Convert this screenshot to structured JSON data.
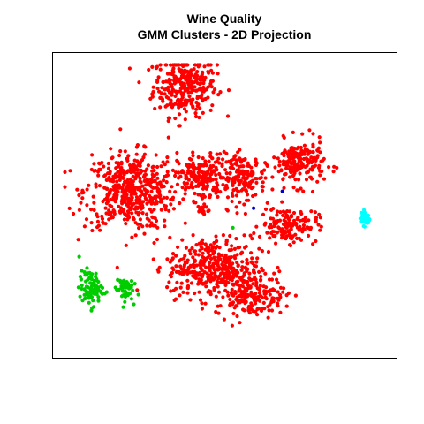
{
  "chart_data": {
    "type": "scatter",
    "title": "Wine Quality",
    "subtitle": "GMM Clusters - 2D Projection",
    "xlabel": "",
    "ylabel": "",
    "xlim": [
      0,
      100
    ],
    "ylim": [
      0,
      100
    ],
    "axes_ticks_visible": false,
    "grid": false,
    "legend": "none",
    "marker": "filled circle",
    "series": [
      {
        "color": "#ff0000",
        "clusters": [
          {
            "cx": 37.5,
            "cy": 92.5,
            "sx": 5.5,
            "sy": 6.0,
            "n": 300
          },
          {
            "cx": 20.5,
            "cy": 55.0,
            "sx": 8.0,
            "sy": 7.5,
            "n": 500
          },
          {
            "cx": 42.5,
            "cy": 60.0,
            "sx": 4.0,
            "sy": 4.5,
            "n": 180
          },
          {
            "cx": 55.5,
            "cy": 60.0,
            "sx": 4.0,
            "sy": 4.5,
            "n": 160
          },
          {
            "cx": 73.0,
            "cy": 65.0,
            "sx": 4.5,
            "sy": 4.5,
            "n": 200
          },
          {
            "cx": 70.0,
            "cy": 43.0,
            "sx": 5.0,
            "sy": 3.5,
            "n": 150
          },
          {
            "cx": 46.5,
            "cy": 28.0,
            "sx": 8.0,
            "sy": 6.0,
            "n": 380
          },
          {
            "cx": 58.0,
            "cy": 18.0,
            "sx": 6.0,
            "sy": 4.0,
            "n": 180
          },
          {
            "cx": 43.0,
            "cy": 48.5,
            "sx": 1.2,
            "sy": 1.0,
            "n": 18
          }
        ]
      },
      {
        "color": "#00cd00",
        "clusters": [
          {
            "cx": 8.0,
            "cy": 20.5,
            "sx": 2.0,
            "sy": 3.5,
            "n": 90
          },
          {
            "cx": 18.5,
            "cy": 20.5,
            "sx": 1.5,
            "sy": 2.5,
            "n": 55
          }
        ],
        "points": [
          {
            "x": 52.5,
            "y": 42.0
          }
        ]
      },
      {
        "color": "#00ffff",
        "clusters": [
          {
            "cx": 94.0,
            "cy": 45.5,
            "sx": 0.8,
            "sy": 1.5,
            "n": 45
          }
        ]
      },
      {
        "color": "#0000cd",
        "points": [
          {
            "x": 59.0,
            "y": 49.0
          },
          {
            "x": 68.0,
            "y": 55.0
          }
        ]
      }
    ]
  }
}
